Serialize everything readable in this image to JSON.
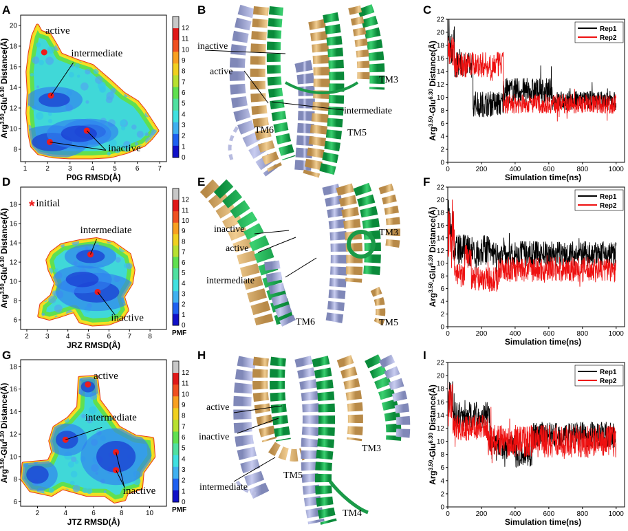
{
  "panel_letters": [
    "A",
    "B",
    "C",
    "D",
    "E",
    "F",
    "G",
    "H",
    "I"
  ],
  "colorbar": {
    "colors": [
      "#1010c8",
      "#1e60f0",
      "#40b0f0",
      "#40e0e0",
      "#50e0a0",
      "#60e050",
      "#b8e030",
      "#f0d020",
      "#f8a020",
      "#f05020",
      "#e01818",
      "#c8c8c8"
    ]
  },
  "chart_data": [
    {
      "id": "A",
      "type": "heatmap",
      "xlabel": "P0G RMSD(Å)",
      "ylabel_parts": {
        "base": "Arg",
        "sup1": "3.50",
        "mid": "-Glu",
        "sup2": "6.30",
        "end": " Distance(Å)"
      },
      "xlim": [
        0.8,
        7.3
      ],
      "ylim": [
        6.8,
        21
      ],
      "xticks": [
        1,
        2,
        3,
        4,
        5,
        6,
        7
      ],
      "yticks": [
        8,
        10,
        12,
        14,
        16,
        18,
        20
      ],
      "colorbar_ticks": [
        0,
        1,
        2,
        3,
        4,
        5,
        6,
        7,
        8,
        9,
        10,
        11,
        12
      ],
      "colorbar_label": "",
      "outline": [
        [
          1.55,
          20
        ],
        [
          1.7,
          19.4
        ],
        [
          2.1,
          19.1
        ],
        [
          2.35,
          18.2
        ],
        [
          2.6,
          17.2
        ],
        [
          3.3,
          16.6
        ],
        [
          4.0,
          16.1
        ],
        [
          4.8,
          14.6
        ],
        [
          5.4,
          13.4
        ],
        [
          6.0,
          12.6
        ],
        [
          6.3,
          11.8
        ],
        [
          6.6,
          10.8
        ],
        [
          6.9,
          9.8
        ],
        [
          6.6,
          9.0
        ],
        [
          6.3,
          8.4
        ],
        [
          5.5,
          7.7
        ],
        [
          4.8,
          7.3
        ],
        [
          4.0,
          7.2
        ],
        [
          3.0,
          7.2
        ],
        [
          2.2,
          7.3
        ],
        [
          1.6,
          7.6
        ],
        [
          1.3,
          8.3
        ],
        [
          1.2,
          9.4
        ],
        [
          1.1,
          11.5
        ],
        [
          1.15,
          13.5
        ],
        [
          1.1,
          15.5
        ],
        [
          1.2,
          17.3
        ],
        [
          1.35,
          19
        ]
      ],
      "wells": [
        [
          2.2,
          8.7,
          0.9
        ],
        [
          3.9,
          9.7,
          0.7
        ],
        [
          2.3,
          12.8,
          0.7
        ],
        [
          3.4,
          9.5,
          0.8
        ]
      ],
      "points": [
        {
          "x": 1.85,
          "y": 17.4
        },
        {
          "x": 2.15,
          "y": 13.2
        },
        {
          "x": 2.1,
          "y": 8.7
        },
        {
          "x": 3.75,
          "y": 9.8
        }
      ],
      "annotations": [
        {
          "text": "active",
          "x": 1.9,
          "y": 19.2
        },
        {
          "text": "intermediate",
          "x": 3.05,
          "y": 17.0
        },
        {
          "text": "inactive",
          "x": 4.7,
          "y": 7.8
        }
      ]
    },
    {
      "id": "C",
      "type": "line",
      "xlabel": "Simulation time(ns)",
      "ylabel_parts": {
        "base": "Arg",
        "sup1": "3.50",
        "mid": "-Glu",
        "sup2": "6.30",
        "end": " Distance(Å)"
      },
      "xlim": [
        0,
        1050
      ],
      "ylim": [
        0,
        22
      ],
      "xticks": [
        0,
        200,
        400,
        600,
        800,
        1000
      ],
      "yticks": [
        0,
        2,
        4,
        6,
        8,
        10,
        12,
        14,
        16,
        18,
        20,
        22
      ],
      "legend": [
        "Rep1",
        "Rep2"
      ],
      "series": [
        {
          "name": "Rep1",
          "color": "#000000",
          "segments": [
            [
              0,
              40,
              18,
              3
            ],
            [
              40,
              150,
              15,
              2
            ],
            [
              150,
              330,
              9,
              2
            ],
            [
              330,
              620,
              11,
              2
            ],
            [
              620,
              1000,
              9.5,
              1.5
            ]
          ]
        },
        {
          "name": "Rep2",
          "color": "#ee1010",
          "segments": [
            [
              0,
              40,
              17,
              2.5
            ],
            [
              40,
              330,
              15,
              2
            ],
            [
              330,
              1000,
              9,
              1.5
            ]
          ]
        }
      ]
    },
    {
      "id": "D",
      "type": "heatmap",
      "xlabel": "JRZ RMSD(Å)",
      "ylabel_parts": {
        "base": "Arg",
        "sup1": "3.50",
        "mid": "-Glu",
        "sup2": "6.30",
        "end": " Distance(Å)"
      },
      "xlim": [
        1.7,
        8.8
      ],
      "ylim": [
        5.0,
        19.8
      ],
      "xticks": [
        2,
        3,
        4,
        5,
        6,
        7,
        8
      ],
      "yticks": [
        6,
        8,
        10,
        12,
        14,
        16,
        18
      ],
      "colorbar_ticks": [
        0,
        1,
        2,
        3,
        4,
        5,
        6,
        7,
        8,
        9,
        10,
        11,
        12
      ],
      "colorbar_label": "PMF",
      "outline": [
        [
          3.2,
          13.0
        ],
        [
          3.7,
          13.8
        ],
        [
          4.6,
          14.2
        ],
        [
          5.4,
          14.4
        ],
        [
          6.2,
          14.0
        ],
        [
          7.0,
          12.8
        ],
        [
          7.2,
          11.2
        ],
        [
          7.1,
          9.8
        ],
        [
          6.7,
          8.4
        ],
        [
          6.9,
          7.0
        ],
        [
          6.6,
          6.1
        ],
        [
          6.0,
          5.6
        ],
        [
          5.2,
          5.5
        ],
        [
          4.6,
          5.8
        ],
        [
          4.3,
          6.9
        ],
        [
          3.6,
          6.4
        ],
        [
          3.1,
          6.1
        ],
        [
          2.6,
          6.4
        ],
        [
          2.7,
          7.6
        ],
        [
          3.2,
          8.5
        ],
        [
          3.4,
          9.8
        ],
        [
          3.1,
          11.2
        ],
        [
          3.0,
          12.2
        ]
      ],
      "wells": [
        [
          5.4,
          8.9,
          1.1
        ],
        [
          5.1,
          12.6,
          0.7
        ],
        [
          4.7,
          10.2,
          0.8
        ]
      ],
      "points": [
        {
          "x": 5.1,
          "y": 12.8
        },
        {
          "x": 5.45,
          "y": 8.9
        }
      ],
      "annotations": [
        {
          "text": "initial",
          "x": 2.45,
          "y": 17.8
        },
        {
          "text": "intermediate",
          "x": 4.6,
          "y": 15.0
        },
        {
          "text": "inactive",
          "x": 6.1,
          "y": 5.9
        }
      ],
      "initial_marker": "*"
    },
    {
      "id": "F",
      "type": "line",
      "xlabel": "Simulation time(ns)",
      "ylabel_parts": {
        "base": "Arg",
        "sup1": "3.50",
        "mid": "-Glu",
        "sup2": "6.30",
        "end": " Distance(Å)"
      },
      "xlim": [
        0,
        1050
      ],
      "ylim": [
        0,
        22
      ],
      "xticks": [
        0,
        200,
        400,
        600,
        800,
        1000
      ],
      "yticks": [
        0,
        2,
        4,
        6,
        8,
        10,
        12,
        14,
        16,
        18,
        20,
        22
      ],
      "legend": [
        "Rep1",
        "Rep2"
      ],
      "series": [
        {
          "name": "Rep1",
          "color": "#000000",
          "segments": [
            [
              0,
              30,
              17,
              3
            ],
            [
              30,
              250,
              12,
              2.5
            ],
            [
              250,
              1000,
              11.5,
              2
            ]
          ]
        },
        {
          "name": "Rep2",
          "color": "#ee1010",
          "segments": [
            [
              0,
              40,
              14,
              5
            ],
            [
              40,
              100,
              8,
              2
            ],
            [
              100,
              140,
              11,
              2
            ],
            [
              140,
              300,
              7.5,
              2
            ],
            [
              300,
              1000,
              9,
              2
            ]
          ]
        }
      ]
    },
    {
      "id": "G",
      "type": "heatmap",
      "xlabel": "JTZ RMSD(Å)",
      "ylabel_parts": {
        "base": "Arg",
        "sup1": "3.50",
        "mid": "-Glu",
        "sup2": "6.30",
        "end": " Distance(Å)"
      },
      "xlim": [
        0.8,
        11.2
      ],
      "ylim": [
        5.6,
        18.6
      ],
      "xticks": [
        2,
        4,
        6,
        8,
        10
      ],
      "yticks": [
        6,
        8,
        10,
        12,
        14,
        16,
        18
      ],
      "colorbar_ticks": [
        0,
        1,
        2,
        3,
        4,
        5,
        6,
        7,
        8,
        9,
        10,
        11,
        12
      ],
      "colorbar_label": "PMF",
      "outline": [
        [
          5.0,
          17.0
        ],
        [
          6.2,
          17.1
        ],
        [
          6.4,
          15.0
        ],
        [
          7.0,
          14.0
        ],
        [
          7.8,
          12.6
        ],
        [
          9.0,
          11.8
        ],
        [
          10.2,
          11.6
        ],
        [
          10.3,
          10.0
        ],
        [
          9.5,
          8.6
        ],
        [
          9.4,
          7.2
        ],
        [
          8.4,
          6.8
        ],
        [
          8.2,
          6.2
        ],
        [
          7.5,
          6.0
        ],
        [
          6.8,
          6.6
        ],
        [
          5.5,
          6.6
        ],
        [
          3.8,
          7.2
        ],
        [
          3.0,
          6.6
        ],
        [
          1.5,
          7.0
        ],
        [
          0.9,
          8.0
        ],
        [
          1.0,
          9.4
        ],
        [
          2.8,
          9.6
        ],
        [
          3.1,
          10.4
        ],
        [
          2.9,
          11.4
        ],
        [
          3.2,
          12.6
        ],
        [
          4.2,
          13.4
        ],
        [
          4.9,
          14.4
        ]
      ],
      "wells": [
        [
          7.6,
          10.0,
          1.4
        ],
        [
          4.1,
          11.5,
          0.8
        ],
        [
          2.0,
          8.4,
          0.8
        ],
        [
          5.6,
          16.2,
          0.5
        ]
      ],
      "points": [
        {
          "x": 5.6,
          "y": 16.4
        },
        {
          "x": 4.0,
          "y": 11.5
        },
        {
          "x": 7.6,
          "y": 10.4
        },
        {
          "x": 7.6,
          "y": 8.8
        }
      ],
      "annotations": [
        {
          "text": "active",
          "x": 6.0,
          "y": 16.9
        },
        {
          "text": "intermediate",
          "x": 5.4,
          "y": 13.2
        },
        {
          "text": "inactive",
          "x": 8.1,
          "y": 6.7
        }
      ]
    },
    {
      "id": "I",
      "type": "line",
      "xlabel": "Simulation time(ns)",
      "ylabel_parts": {
        "base": "Arg",
        "sup1": "3.50",
        "mid": "-Glu",
        "sup2": "6.30",
        "end": " Distance(Å)"
      },
      "xlim": [
        0,
        1050
      ],
      "ylim": [
        0,
        22
      ],
      "xticks": [
        0,
        200,
        400,
        600,
        800,
        1000
      ],
      "yticks": [
        0,
        2,
        4,
        6,
        8,
        10,
        12,
        14,
        16,
        18,
        20,
        22
      ],
      "legend": [
        "Rep1",
        "Rep2"
      ],
      "series": [
        {
          "name": "Rep1",
          "color": "#000000",
          "segments": [
            [
              0,
              30,
              17,
              3
            ],
            [
              30,
              250,
              14,
              2
            ],
            [
              250,
              400,
              9,
              2
            ],
            [
              400,
              500,
              8,
              2
            ],
            [
              500,
              1000,
              11,
              2
            ]
          ]
        },
        {
          "name": "Rep2",
          "color": "#ee1010",
          "segments": [
            [
              0,
              30,
              16,
              4
            ],
            [
              30,
              240,
              12,
              2
            ],
            [
              240,
              1000,
              10,
              2.5
            ]
          ]
        }
      ]
    }
  ],
  "structures": [
    {
      "id": "B",
      "labels": [
        {
          "text": "inactive",
          "x": 287,
          "y": 71
        },
        {
          "text": "active",
          "x": 305,
          "y": 108
        },
        {
          "text": "TM3",
          "x": 551,
          "y": 120
        },
        {
          "text": "intermediate",
          "x": 500,
          "y": 165
        },
        {
          "text": "TM6",
          "x": 370,
          "y": 193
        },
        {
          "text": "TM5",
          "x": 505,
          "y": 197
        }
      ]
    },
    {
      "id": "E",
      "labels": [
        {
          "text": "inactive",
          "x": 311,
          "y": 337
        },
        {
          "text": "TM3",
          "x": 551,
          "y": 342
        },
        {
          "text": "active",
          "x": 328,
          "y": 365
        },
        {
          "text": "intermediate",
          "x": 300,
          "y": 412
        },
        {
          "text": "TM6",
          "x": 430,
          "y": 472
        },
        {
          "text": "TM5",
          "x": 551,
          "y": 473
        }
      ]
    },
    {
      "id": "H",
      "labels": [
        {
          "text": "active",
          "x": 300,
          "y": 596
        },
        {
          "text": "inactive",
          "x": 289,
          "y": 639
        },
        {
          "text": "TM3",
          "x": 526,
          "y": 656
        },
        {
          "text": "TM5",
          "x": 412,
          "y": 695
        },
        {
          "text": "intermediate",
          "x": 290,
          "y": 712
        },
        {
          "text": "TM4",
          "x": 498,
          "y": 750
        }
      ]
    }
  ]
}
